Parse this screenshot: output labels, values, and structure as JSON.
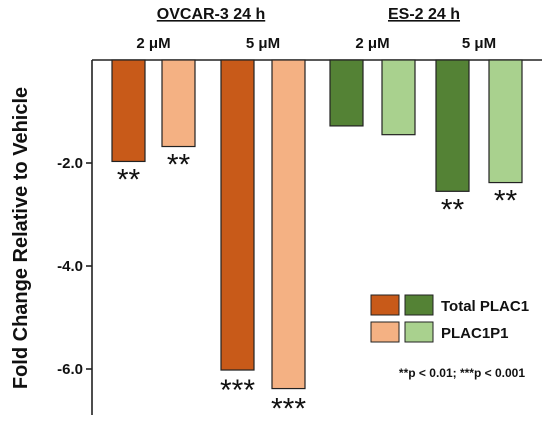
{
  "chart_data": {
    "type": "bar",
    "ylabel": "Fold Change Relative to Vehicle",
    "ylim": [
      -7.0,
      0.0
    ],
    "yticks": [
      -2.0,
      -4.0,
      -6.0
    ],
    "ytick_labels": [
      "-2.0",
      "-4.0",
      "-6.0"
    ],
    "groups": [
      {
        "title": "OVCAR-3 24 h",
        "subgroups": [
          "2 μM",
          "5 μM"
        ]
      },
      {
        "title": "ES-2 24 h",
        "subgroups": [
          "2 μM",
          "5 μM"
        ]
      }
    ],
    "bars": [
      {
        "cell_line": "OVCAR-3 24 h",
        "conc": "2 μM",
        "gene": "Total PLAC1",
        "value": -1.97,
        "color": "#c85a19",
        "sig": "**"
      },
      {
        "cell_line": "OVCAR-3 24 h",
        "conc": "2 μM",
        "gene": "PLAC1P1",
        "value": -1.68,
        "color": "#f4b183",
        "sig": "**"
      },
      {
        "cell_line": "OVCAR-3 24 h",
        "conc": "5 μM",
        "gene": "Total PLAC1",
        "value": -6.02,
        "color": "#c85a19",
        "sig": "***"
      },
      {
        "cell_line": "OVCAR-3 24 h",
        "conc": "5 μM",
        "gene": "PLAC1P1",
        "value": -6.38,
        "color": "#f4b183",
        "sig": "***"
      },
      {
        "cell_line": "ES-2 24 h",
        "conc": "2 μM",
        "gene": "Total PLAC1",
        "value": -1.28,
        "color": "#548235",
        "sig": ""
      },
      {
        "cell_line": "ES-2 24 h",
        "conc": "2 μM",
        "gene": "PLAC1P1",
        "value": -1.45,
        "color": "#a9d18e",
        "sig": ""
      },
      {
        "cell_line": "ES-2 24 h",
        "conc": "5 μM",
        "gene": "Total PLAC1",
        "value": -2.55,
        "color": "#548235",
        "sig": "**"
      },
      {
        "cell_line": "ES-2 24 h",
        "conc": "5 μM",
        "gene": "PLAC1P1",
        "value": -2.38,
        "color": "#a9d18e",
        "sig": "**"
      }
    ],
    "legend": {
      "placement": "bottom-right",
      "entries": [
        {
          "label": "Total PLAC1",
          "colors": [
            "#c85a19",
            "#548235"
          ]
        },
        {
          "label": "PLAC1P1",
          "colors": [
            "#f4b183",
            "#a9d18e"
          ]
        }
      ]
    },
    "annotation": "**p < 0.01; ***p < 0.001",
    "grid": false
  }
}
